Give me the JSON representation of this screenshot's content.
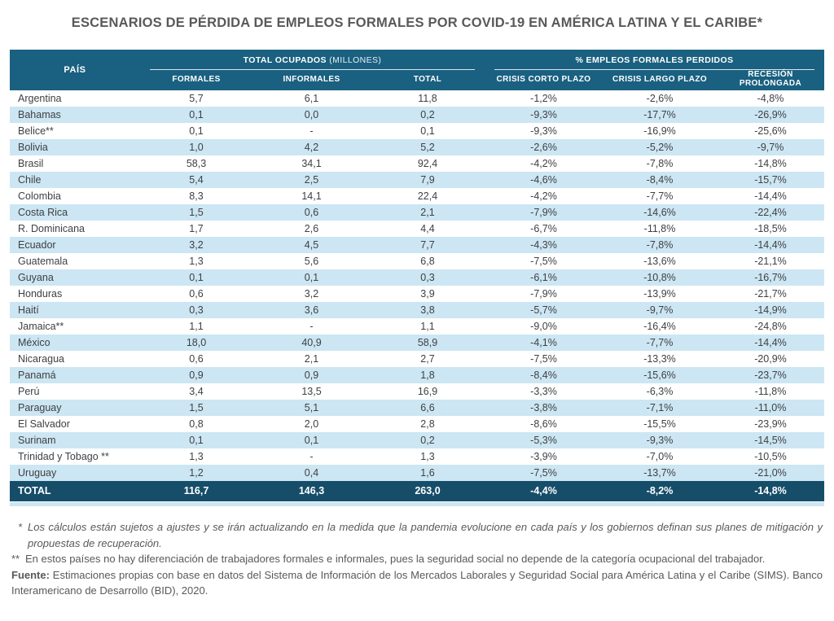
{
  "title": "ESCENARIOS DE PÉRDIDA DE EMPLEOS FORMALES POR COVID-19 EN AMÉRICA LATINA Y EL CARIBE*",
  "chart_data": {
    "type": "table",
    "title": "ESCENARIOS DE PÉRDIDA DE EMPLEOS FORMALES POR COVID-19 EN AMÉRICA LATINA Y EL CARIBE*",
    "row_header": "PAÍS",
    "column_groups": [
      {
        "label": "TOTAL OCUPADOS",
        "unit": "(MILLONES)",
        "columns": [
          "FORMALES",
          "INFORMALES",
          "TOTAL"
        ]
      },
      {
        "label": "% EMPLEOS FORMALES PERDIDOS",
        "columns": [
          "CRISIS CORTO PLAZO",
          "CRISIS LARGO PLAZO",
          "RECESIÓN PROLONGADA"
        ]
      }
    ],
    "rows": [
      {
        "pais": "Argentina",
        "formales": "5,7",
        "informales": "6,1",
        "total": "11,8",
        "crisis_corto": "-1,2%",
        "crisis_largo": "-2,6%",
        "recesion": "-4,8%"
      },
      {
        "pais": "Bahamas",
        "formales": "0,1",
        "informales": "0,0",
        "total": "0,2",
        "crisis_corto": "-9,3%",
        "crisis_largo": "-17,7%",
        "recesion": "-26,9%"
      },
      {
        "pais": "Belice**",
        "formales": "0,1",
        "informales": "-",
        "total": "0,1",
        "crisis_corto": "-9,3%",
        "crisis_largo": "-16,9%",
        "recesion": "-25,6%"
      },
      {
        "pais": "Bolivia",
        "formales": "1,0",
        "informales": "4,2",
        "total": "5,2",
        "crisis_corto": "-2,6%",
        "crisis_largo": "-5,2%",
        "recesion": "-9,7%"
      },
      {
        "pais": "Brasil",
        "formales": "58,3",
        "informales": "34,1",
        "total": "92,4",
        "crisis_corto": "-4,2%",
        "crisis_largo": "-7,8%",
        "recesion": "-14,8%"
      },
      {
        "pais": "Chile",
        "formales": "5,4",
        "informales": "2,5",
        "total": "7,9",
        "crisis_corto": "-4,6%",
        "crisis_largo": "-8,4%",
        "recesion": "-15,7%"
      },
      {
        "pais": "Colombia",
        "formales": "8,3",
        "informales": "14,1",
        "total": "22,4",
        "crisis_corto": "-4,2%",
        "crisis_largo": "-7,7%",
        "recesion": "-14,4%"
      },
      {
        "pais": "Costa Rica",
        "formales": "1,5",
        "informales": "0,6",
        "total": "2,1",
        "crisis_corto": "-7,9%",
        "crisis_largo": "-14,6%",
        "recesion": "-22,4%"
      },
      {
        "pais": "R. Dominicana",
        "formales": "1,7",
        "informales": "2,6",
        "total": "4,4",
        "crisis_corto": "-6,7%",
        "crisis_largo": "-11,8%",
        "recesion": "-18,5%"
      },
      {
        "pais": "Ecuador",
        "formales": "3,2",
        "informales": "4,5",
        "total": "7,7",
        "crisis_corto": "-4,3%",
        "crisis_largo": "-7,8%",
        "recesion": "-14,4%"
      },
      {
        "pais": "Guatemala",
        "formales": "1,3",
        "informales": "5,6",
        "total": "6,8",
        "crisis_corto": "-7,5%",
        "crisis_largo": "-13,6%",
        "recesion": "-21,1%"
      },
      {
        "pais": "Guyana",
        "formales": "0,1",
        "informales": "0,1",
        "total": "0,3",
        "crisis_corto": "-6,1%",
        "crisis_largo": "-10,8%",
        "recesion": "-16,7%"
      },
      {
        "pais": "Honduras",
        "formales": "0,6",
        "informales": "3,2",
        "total": "3,9",
        "crisis_corto": "-7,9%",
        "crisis_largo": "-13,9%",
        "recesion": "-21,7%"
      },
      {
        "pais": "Haití",
        "formales": "0,3",
        "informales": "3,6",
        "total": "3,8",
        "crisis_corto": "-5,7%",
        "crisis_largo": "-9,7%",
        "recesion": "-14,9%"
      },
      {
        "pais": "Jamaica**",
        "formales": "1,1",
        "informales": "-",
        "total": "1,1",
        "crisis_corto": "-9,0%",
        "crisis_largo": "-16,4%",
        "recesion": "-24,8%"
      },
      {
        "pais": "México",
        "formales": "18,0",
        "informales": "40,9",
        "total": "58,9",
        "crisis_corto": "-4,1%",
        "crisis_largo": "-7,7%",
        "recesion": "-14,4%"
      },
      {
        "pais": "Nicaragua",
        "formales": "0,6",
        "informales": "2,1",
        "total": "2,7",
        "crisis_corto": "-7,5%",
        "crisis_largo": "-13,3%",
        "recesion": "-20,9%"
      },
      {
        "pais": "Panamá",
        "formales": "0,9",
        "informales": "0,9",
        "total": "1,8",
        "crisis_corto": "-8,4%",
        "crisis_largo": "-15,6%",
        "recesion": "-23,7%"
      },
      {
        "pais": "Perú",
        "formales": "3,4",
        "informales": "13,5",
        "total": "16,9",
        "crisis_corto": "-3,3%",
        "crisis_largo": "-6,3%",
        "recesion": "-11,8%"
      },
      {
        "pais": "Paraguay",
        "formales": "1,5",
        "informales": "5,1",
        "total": "6,6",
        "crisis_corto": "-3,8%",
        "crisis_largo": "-7,1%",
        "recesion": "-11,0%"
      },
      {
        "pais": "El Salvador",
        "formales": "0,8",
        "informales": "2,0",
        "total": "2,8",
        "crisis_corto": "-8,6%",
        "crisis_largo": "-15,5%",
        "recesion": "-23,9%"
      },
      {
        "pais": "Surinam",
        "formales": "0,1",
        "informales": "0,1",
        "total": "0,2",
        "crisis_corto": "-5,3%",
        "crisis_largo": "-9,3%",
        "recesion": "-14,5%"
      },
      {
        "pais": "Trinidad y Tobago **",
        "formales": "1,3",
        "informales": "-",
        "total": "1,3",
        "crisis_corto": "-3,9%",
        "crisis_largo": "-7,0%",
        "recesion": "-10,5%"
      },
      {
        "pais": "Uruguay",
        "formales": "1,2",
        "informales": "0,4",
        "total": "1,6",
        "crisis_corto": "-7,5%",
        "crisis_largo": "-13,7%",
        "recesion": "-21,0%"
      }
    ],
    "total_row": {
      "pais": "TOTAL",
      "formales": "116,7",
      "informales": "146,3",
      "total": "263,0",
      "crisis_corto": "-4,4%",
      "crisis_largo": "-8,2%",
      "recesion": "-14,8%"
    }
  },
  "footnotes": {
    "note1_marker": "*",
    "note1": "Los cálculos están sujetos a ajustes y se irán actualizando en la medida que la pandemia evolucione en cada país y los gobiernos definan sus planes de mitigación y propuestas de recuperación.",
    "note2_marker": "**",
    "note2": "En estos países no hay diferenciación de trabajadores formales e informales, pues la seguridad social no depende de la categoría ocupacional del trabajador.",
    "source_label": "Fuente:",
    "source_text": " Estimaciones propias con base en datos del Sistema de Información de los Mercados Laborales y Seguridad Social para América Latina y el Caribe (SIMS). Banco Interamericano de Desarrollo (BID), 2020."
  },
  "colors": {
    "header_bg": "#1a6080",
    "total_row_bg": "#164e6a",
    "stripe_blue": "#cce6f3",
    "body_text": "#3f4042",
    "gray_text": "#58595b"
  }
}
